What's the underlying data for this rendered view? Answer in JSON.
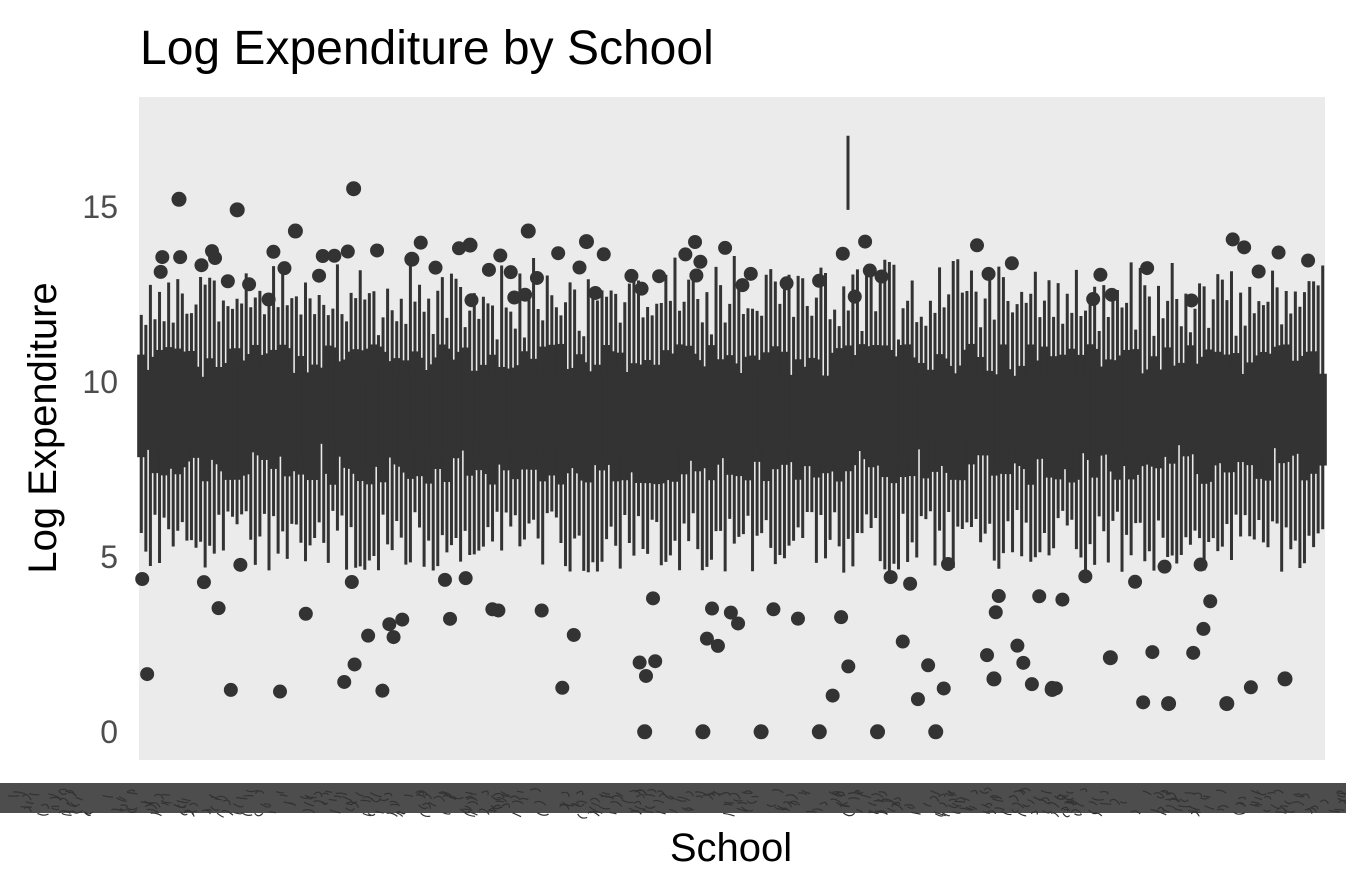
{
  "chart_data": {
    "type": "box",
    "title": "Log Expenditure by School",
    "xlabel": "School",
    "ylabel": "Log Expenditure",
    "ylim": [
      -0.8,
      18.0
    ],
    "yticks": [
      0,
      5,
      10,
      15
    ],
    "ytick_labels": [
      "0",
      "5",
      "10",
      "15"
    ],
    "grid": false,
    "legend": "none",
    "x_tick_labels_legible": false,
    "summary": {
      "box_band_y_range": [
        7.0,
        11.0
      ],
      "whisker_band_y_range": [
        4.5,
        12.5
      ],
      "outlier_y_range": [
        0.0,
        17.0
      ],
      "max_outlier": 16.9,
      "min_outlier": 0.0
    },
    "notable_outliers": [
      {
        "y": 15.1
      },
      {
        "y": 14.8
      },
      {
        "y": 14.2
      },
      {
        "y": 15.4
      },
      {
        "y": 13.4
      },
      {
        "y": 13.8
      },
      {
        "y": 14.2
      },
      {
        "y": 13.9
      },
      {
        "y": 0.0
      },
      {
        "y": 0.0
      },
      {
        "y": 0.0
      },
      {
        "y": 0.0
      },
      {
        "y": 0.0
      },
      {
        "y": 0.0
      },
      {
        "y": 1.5
      },
      {
        "y": 1.2
      },
      {
        "y": 2.1
      },
      {
        "y": 0.8
      },
      {
        "y": 0.8
      },
      {
        "y": 1.5
      }
    ]
  },
  "colors": {
    "panel_background": "#ebebeb",
    "box_fill": "#333333",
    "tick_band": "#4d4d4d",
    "title": "#000000",
    "tick_text": "#4d4d4d"
  }
}
